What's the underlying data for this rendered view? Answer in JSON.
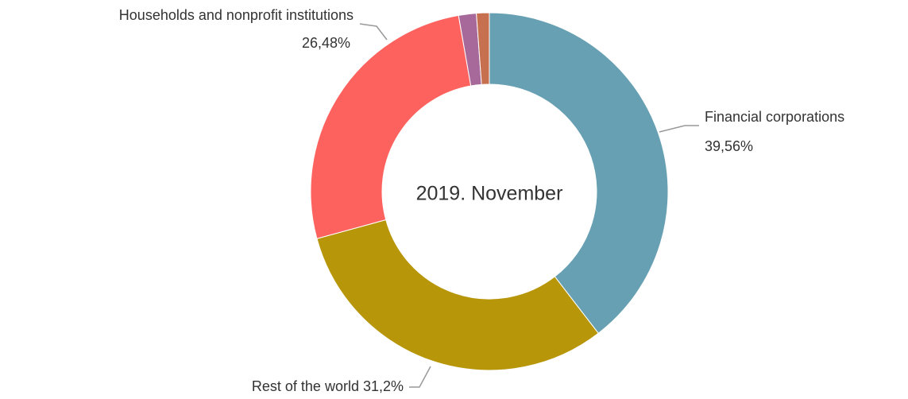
{
  "chart_data": {
    "type": "pie",
    "center_label": "2019. November",
    "categories": [
      "Financial corporations",
      "Rest of the world",
      "Households and nonprofit institutions",
      null,
      null
    ],
    "values": [
      39.56,
      31.2,
      26.48,
      1.6,
      1.16
    ],
    "value_labels": [
      "39,56%",
      "31,2%",
      "26,48%",
      null,
      null
    ],
    "colors": [
      "#67a0b2",
      "#b8960a",
      "#fd625e",
      "#a66999",
      "#c7704f"
    ]
  }
}
